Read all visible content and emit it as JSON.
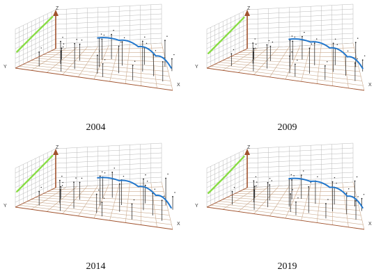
{
  "chart_data": [
    {
      "type": "3d-scatter",
      "title": "2004",
      "axes": {
        "x_label": "X",
        "y_label": "Y",
        "z_label": "Z"
      },
      "grid": true,
      "series": [
        {
          "kind": "trend-line",
          "plane": "YZ",
          "color": "#88dd44",
          "points": [
            [
              0.04,
              0.4
            ],
            [
              0.45,
              0.62
            ],
            [
              0.92,
              0.86
            ]
          ]
        },
        {
          "kind": "trend-curve",
          "plane": "XZ",
          "color": "#2277cc",
          "points": [
            [
              0.02,
              0.52
            ],
            [
              0.3,
              0.72
            ],
            [
              0.55,
              0.7
            ],
            [
              0.78,
              0.52
            ],
            [
              0.98,
              0.18
            ]
          ]
        },
        {
          "kind": "stems",
          "points": [
            [
              0.1,
              0.2,
              0.35
            ],
            [
              0.18,
              0.42,
              0.55
            ],
            [
              0.24,
              0.66,
              0.4
            ],
            [
              0.3,
              0.3,
              0.62
            ],
            [
              0.34,
              0.82,
              0.5
            ],
            [
              0.4,
              0.52,
              0.7
            ],
            [
              0.46,
              0.24,
              0.45
            ],
            [
              0.5,
              0.7,
              0.58
            ],
            [
              0.56,
              0.38,
              0.66
            ],
            [
              0.6,
              0.86,
              0.42
            ],
            [
              0.66,
              0.58,
              0.74
            ],
            [
              0.7,
              0.18,
              0.36
            ],
            [
              0.76,
              0.46,
              0.52
            ],
            [
              0.8,
              0.76,
              0.3
            ],
            [
              0.86,
              0.3,
              0.48
            ],
            [
              0.14,
              0.6,
              0.28
            ],
            [
              0.26,
              0.12,
              0.5
            ],
            [
              0.38,
              0.9,
              0.6
            ],
            [
              0.52,
              0.14,
              0.32
            ],
            [
              0.72,
              0.9,
              0.64
            ]
          ]
        }
      ]
    },
    {
      "type": "3d-scatter",
      "title": "2009",
      "axes": {
        "x_label": "X",
        "y_label": "Y",
        "z_label": "Z"
      },
      "grid": true,
      "series": [
        {
          "kind": "trend-line",
          "plane": "YZ",
          "color": "#88dd44",
          "points": [
            [
              0.04,
              0.36
            ],
            [
              0.45,
              0.58
            ],
            [
              0.92,
              0.84
            ]
          ]
        },
        {
          "kind": "trend-curve",
          "plane": "XZ",
          "color": "#2277cc",
          "points": [
            [
              0.02,
              0.46
            ],
            [
              0.3,
              0.64
            ],
            [
              0.55,
              0.64
            ],
            [
              0.78,
              0.48
            ],
            [
              0.98,
              0.16
            ]
          ]
        },
        {
          "kind": "stems",
          "points": [
            [
              0.1,
              0.22,
              0.3
            ],
            [
              0.18,
              0.44,
              0.5
            ],
            [
              0.24,
              0.64,
              0.36
            ],
            [
              0.3,
              0.32,
              0.58
            ],
            [
              0.34,
              0.8,
              0.46
            ],
            [
              0.4,
              0.5,
              0.66
            ],
            [
              0.46,
              0.26,
              0.42
            ],
            [
              0.5,
              0.72,
              0.54
            ],
            [
              0.56,
              0.36,
              0.62
            ],
            [
              0.6,
              0.84,
              0.4
            ],
            [
              0.66,
              0.56,
              0.7
            ],
            [
              0.7,
              0.2,
              0.34
            ],
            [
              0.76,
              0.48,
              0.5
            ],
            [
              0.8,
              0.74,
              0.28
            ],
            [
              0.86,
              0.32,
              0.44
            ],
            [
              0.14,
              0.62,
              0.26
            ],
            [
              0.26,
              0.14,
              0.46
            ],
            [
              0.38,
              0.88,
              0.56
            ],
            [
              0.52,
              0.16,
              0.3
            ],
            [
              0.72,
              0.88,
              0.6
            ]
          ]
        }
      ]
    },
    {
      "type": "3d-scatter",
      "title": "2014",
      "axes": {
        "x_label": "X",
        "y_label": "Y",
        "z_label": "Z"
      },
      "grid": true,
      "series": [
        {
          "kind": "trend-line",
          "plane": "YZ",
          "color": "#88dd44",
          "points": [
            [
              0.04,
              0.38
            ],
            [
              0.45,
              0.6
            ],
            [
              0.92,
              0.86
            ]
          ]
        },
        {
          "kind": "trend-curve",
          "plane": "XZ",
          "color": "#2277cc",
          "points": [
            [
              0.02,
              0.48
            ],
            [
              0.3,
              0.66
            ],
            [
              0.55,
              0.66
            ],
            [
              0.78,
              0.5
            ],
            [
              0.98,
              0.14
            ]
          ]
        },
        {
          "kind": "stems",
          "points": [
            [
              0.1,
              0.2,
              0.34
            ],
            [
              0.18,
              0.4,
              0.56
            ],
            [
              0.24,
              0.66,
              0.42
            ],
            [
              0.3,
              0.28,
              0.64
            ],
            [
              0.34,
              0.84,
              0.52
            ],
            [
              0.4,
              0.54,
              0.72
            ],
            [
              0.46,
              0.22,
              0.46
            ],
            [
              0.5,
              0.68,
              0.6
            ],
            [
              0.56,
              0.4,
              0.68
            ],
            [
              0.6,
              0.88,
              0.44
            ],
            [
              0.66,
              0.6,
              0.76
            ],
            [
              0.7,
              0.16,
              0.38
            ],
            [
              0.76,
              0.44,
              0.54
            ],
            [
              0.8,
              0.78,
              0.32
            ],
            [
              0.86,
              0.28,
              0.5
            ],
            [
              0.14,
              0.58,
              0.3
            ],
            [
              0.26,
              0.1,
              0.52
            ],
            [
              0.38,
              0.92,
              0.62
            ],
            [
              0.52,
              0.12,
              0.34
            ],
            [
              0.72,
              0.92,
              0.66
            ]
          ]
        }
      ]
    },
    {
      "type": "3d-scatter",
      "title": "2019",
      "axes": {
        "x_label": "X",
        "y_label": "Y",
        "z_label": "Z"
      },
      "grid": true,
      "series": [
        {
          "kind": "trend-line",
          "plane": "YZ",
          "color": "#88dd44",
          "points": [
            [
              0.04,
              0.34
            ],
            [
              0.45,
              0.56
            ],
            [
              0.92,
              0.84
            ]
          ]
        },
        {
          "kind": "trend-curve",
          "plane": "XZ",
          "color": "#2277cc",
          "points": [
            [
              0.02,
              0.44
            ],
            [
              0.3,
              0.62
            ],
            [
              0.55,
              0.62
            ],
            [
              0.78,
              0.46
            ],
            [
              0.98,
              0.14
            ]
          ]
        },
        {
          "kind": "stems",
          "points": [
            [
              0.1,
              0.24,
              0.32
            ],
            [
              0.18,
              0.46,
              0.52
            ],
            [
              0.24,
              0.62,
              0.38
            ],
            [
              0.3,
              0.34,
              0.6
            ],
            [
              0.34,
              0.78,
              0.48
            ],
            [
              0.4,
              0.48,
              0.68
            ],
            [
              0.46,
              0.28,
              0.44
            ],
            [
              0.5,
              0.74,
              0.56
            ],
            [
              0.56,
              0.34,
              0.64
            ],
            [
              0.6,
              0.82,
              0.42
            ],
            [
              0.66,
              0.54,
              0.72
            ],
            [
              0.7,
              0.22,
              0.36
            ],
            [
              0.76,
              0.5,
              0.52
            ],
            [
              0.8,
              0.72,
              0.3
            ],
            [
              0.86,
              0.34,
              0.46
            ],
            [
              0.14,
              0.64,
              0.28
            ],
            [
              0.26,
              0.16,
              0.48
            ],
            [
              0.38,
              0.86,
              0.58
            ],
            [
              0.52,
              0.18,
              0.32
            ],
            [
              0.72,
              0.86,
              0.62
            ]
          ]
        }
      ]
    }
  ],
  "colors": {
    "grid": "#b8b8b8",
    "floor_grid": "#c9a98d",
    "z_axis": "#a0522d",
    "stems": "#333333",
    "points": "#222222"
  },
  "icons": {
    "axis_arrow": "arrow-up-icon"
  }
}
